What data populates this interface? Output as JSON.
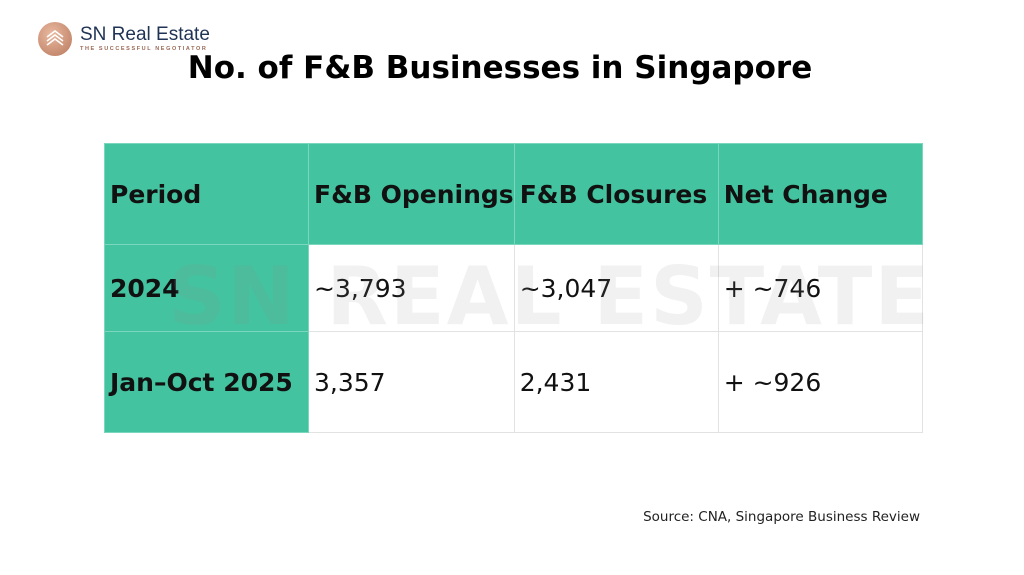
{
  "logo": {
    "name": "SN Real Estate",
    "tagline": "THE SUCCESSFUL NEGOTIATOR"
  },
  "title": "No. of F&B Businesses in Singapore",
  "watermark": "SN REAL ESTATE",
  "colors": {
    "header_bg": "#43c39f",
    "brand_navy": "#1f3354",
    "brand_copper": "#b8785c"
  },
  "chart_data": {
    "type": "table",
    "title": "No. of F&B Businesses in Singapore",
    "columns": [
      "Period",
      "F&B Openings",
      "F&B Closures",
      "Net Change"
    ],
    "rows": [
      [
        "2024",
        "~3,793",
        "~3,047",
        "+ ~746"
      ],
      [
        "Jan–Oct 2025",
        "3,357",
        "2,431",
        "+ ~926"
      ]
    ]
  },
  "source": "Source: CNA, Singapore Business Review"
}
